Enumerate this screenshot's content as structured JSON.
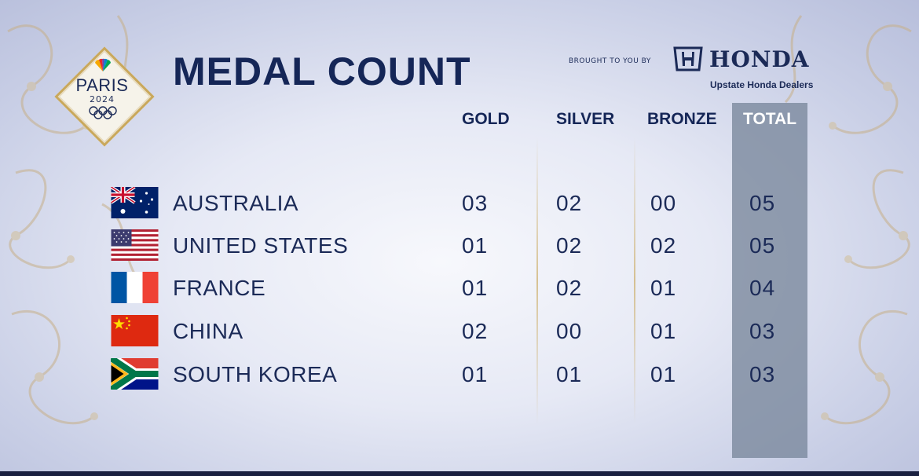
{
  "logo": {
    "city": "PARIS",
    "year": "2024"
  },
  "title": "MEDAL COUNT",
  "sponsor": {
    "prefix": "BROUGHT TO YOU BY",
    "brand": "HONDA",
    "dealers": "Upstate Honda Dealers"
  },
  "columns": {
    "gold": "GOLD",
    "silver": "SILVER",
    "bronze": "BRONZE",
    "total": "TOTAL"
  },
  "rows": [
    {
      "country": "AUSTRALIA",
      "flag": "australia-flag",
      "gold": "03",
      "silver": "02",
      "bronze": "00",
      "total": "05"
    },
    {
      "country": "UNITED STATES",
      "flag": "united-states-flag",
      "gold": "01",
      "silver": "02",
      "bronze": "02",
      "total": "05"
    },
    {
      "country": "FRANCE",
      "flag": "france-flag",
      "gold": "01",
      "silver": "02",
      "bronze": "01",
      "total": "04"
    },
    {
      "country": "CHINA",
      "flag": "china-flag",
      "gold": "02",
      "silver": "00",
      "bronze": "01",
      "total": "03"
    },
    {
      "country": "SOUTH KOREA",
      "flag": "south-africa-flag",
      "gold": "01",
      "silver": "01",
      "bronze": "01",
      "total": "03"
    }
  ],
  "colors": {
    "navy": "#152657",
    "total_column": "#78879b",
    "accent_gold": "#c9a85c"
  }
}
